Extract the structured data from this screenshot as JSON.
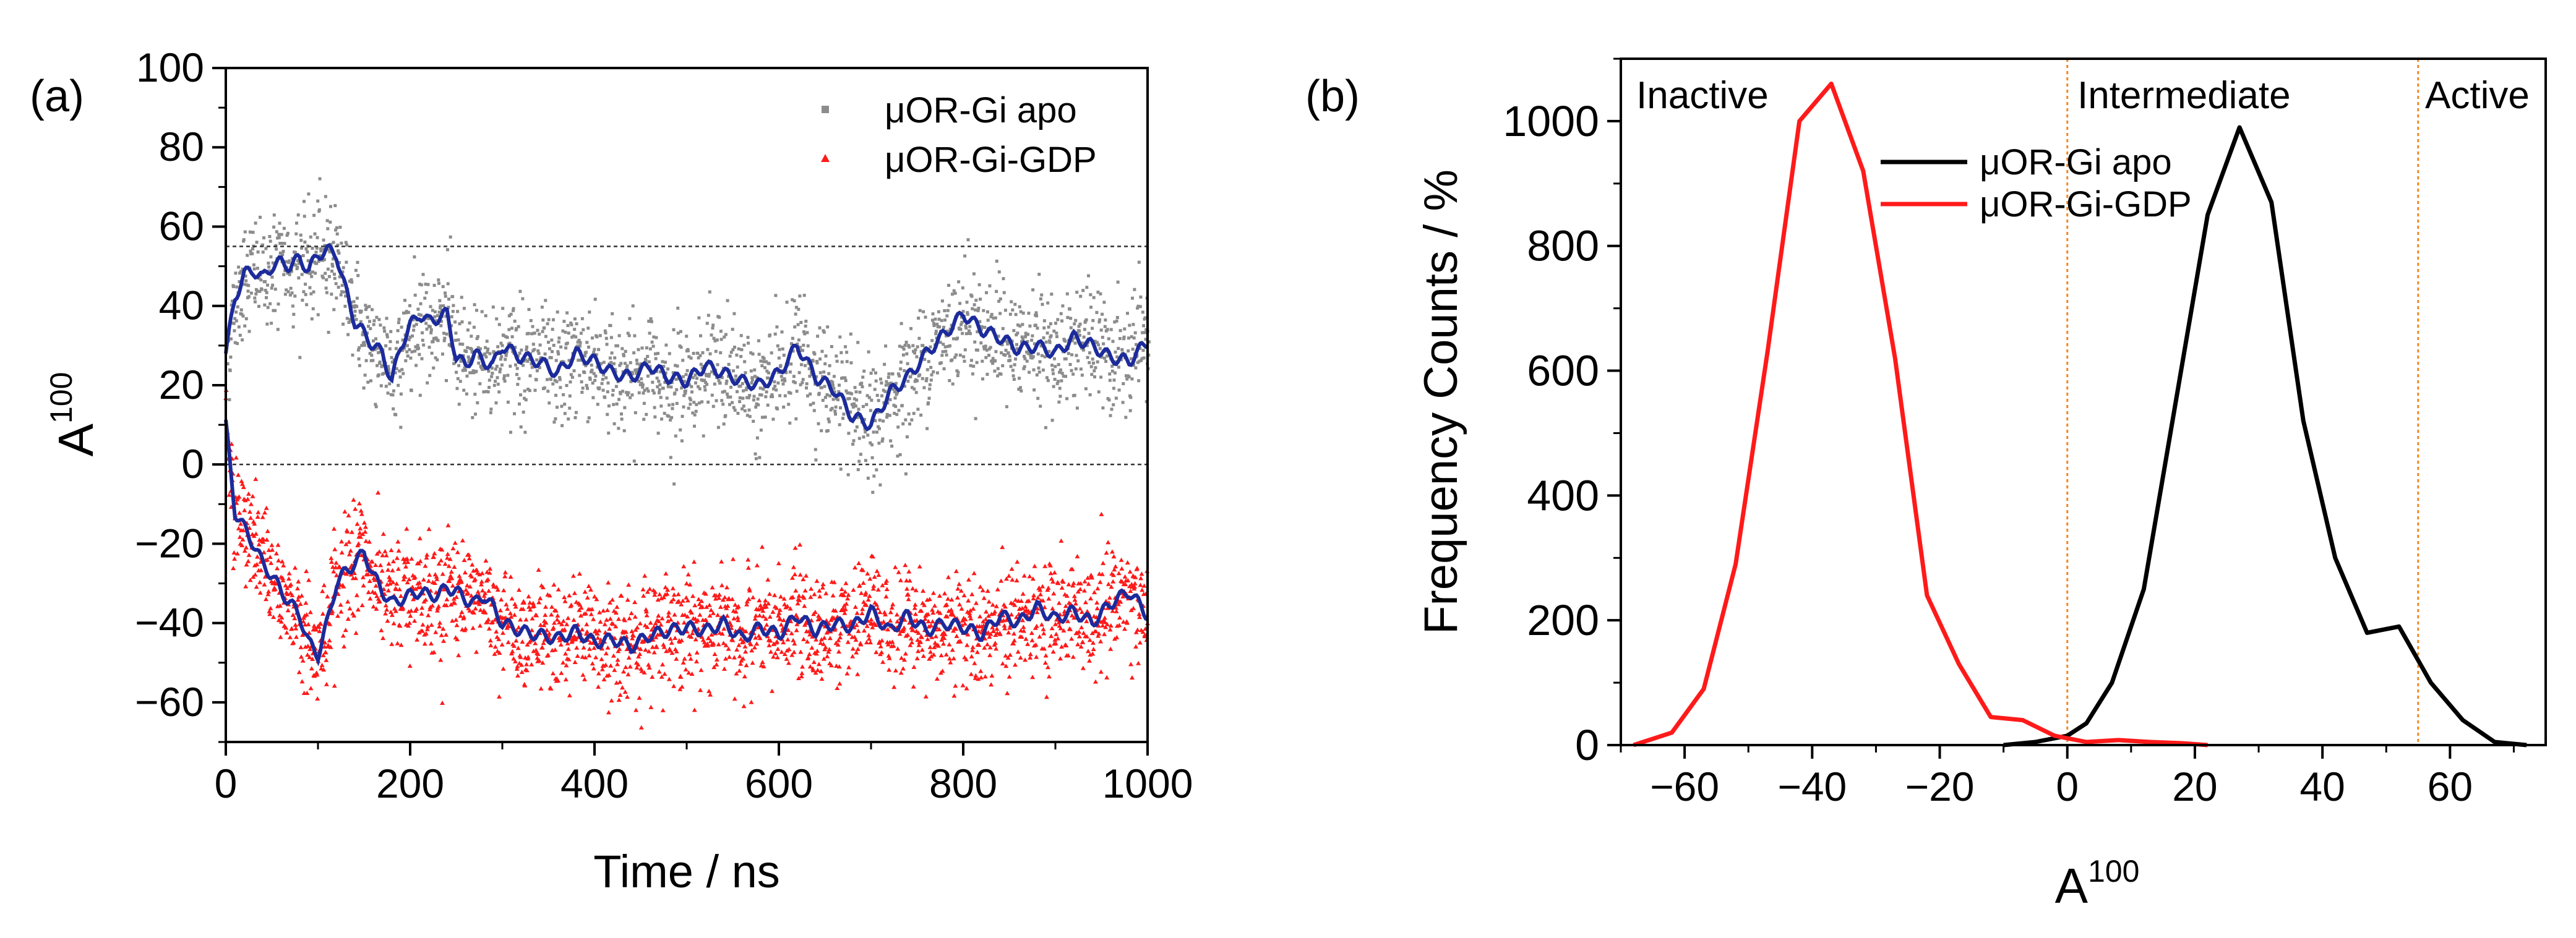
{
  "figure": {
    "description_panels": [
      "(a)",
      "(b)"
    ]
  },
  "chart_data": [
    {
      "panel_label": "(a)",
      "type": "scatter",
      "title": "",
      "xlabel": "Time / ns",
      "ylabel_base": "A",
      "ylabel_sup": "100",
      "xlim": [
        0,
        1000
      ],
      "ylim": [
        -70,
        100
      ],
      "xticks": [
        0,
        200,
        400,
        600,
        800,
        1000
      ],
      "yticks": [
        -60,
        -40,
        -20,
        0,
        20,
        40,
        60,
        80,
        100
      ],
      "reference_lines": [
        55,
        0
      ],
      "legend_position": "top-right",
      "series": [
        {
          "name": "μOR-Gi apo",
          "marker": "square",
          "color": "#8c8c8c",
          "smooth_color": "#1c2b9c",
          "x": [
            0,
            10,
            20,
            30,
            40,
            50,
            60,
            70,
            80,
            90,
            100,
            110,
            120,
            130,
            140,
            150,
            160,
            170,
            180,
            190,
            200,
            210,
            220,
            230,
            240,
            250,
            260,
            270,
            280,
            290,
            300,
            320,
            340,
            360,
            380,
            400,
            420,
            440,
            460,
            480,
            500,
            520,
            540,
            560,
            580,
            600,
            620,
            640,
            660,
            680,
            700,
            720,
            740,
            760,
            780,
            800,
            820,
            840,
            860,
            880,
            900,
            920,
            940,
            960,
            980,
            1000
          ],
          "smooth": [
            28,
            42,
            48,
            49,
            47,
            50,
            51,
            50,
            52,
            49,
            53,
            54,
            53,
            44,
            36,
            33,
            30,
            28,
            21,
            30,
            35,
            38,
            36,
            37,
            38,
            27,
            25,
            28,
            26,
            25,
            30,
            27,
            26,
            23,
            28,
            26,
            23,
            22,
            25,
            22,
            21,
            25,
            23,
            21,
            20,
            23,
            30,
            22,
            19,
            12,
            10,
            18,
            22,
            28,
            33,
            38,
            34,
            32,
            29,
            30,
            28,
            32,
            30,
            27,
            26,
            31
          ]
        },
        {
          "name": "μOR-Gi-GDP",
          "marker": "triangle",
          "color": "#ff1a1a",
          "smooth_color": "#1c2b9c",
          "x": [
            0,
            10,
            20,
            30,
            40,
            50,
            60,
            70,
            80,
            90,
            100,
            110,
            120,
            130,
            140,
            150,
            160,
            170,
            180,
            190,
            200,
            210,
            220,
            230,
            240,
            250,
            260,
            270,
            280,
            290,
            300,
            320,
            340,
            360,
            380,
            400,
            420,
            440,
            460,
            480,
            500,
            520,
            540,
            560,
            580,
            600,
            620,
            640,
            660,
            680,
            700,
            720,
            740,
            760,
            780,
            800,
            820,
            840,
            860,
            880,
            900,
            920,
            940,
            960,
            980,
            1000
          ],
          "smooth": [
            10,
            -12,
            -16,
            -20,
            -25,
            -28,
            -32,
            -35,
            -38,
            -45,
            -48,
            -40,
            -30,
            -27,
            -25,
            -22,
            -28,
            -32,
            -35,
            -34,
            -33,
            -32,
            -33,
            -33,
            -31,
            -32,
            -34,
            -35,
            -33,
            -36,
            -40,
            -42,
            -43,
            -44,
            -42,
            -45,
            -44,
            -46,
            -43,
            -42,
            -41,
            -42,
            -40,
            -44,
            -41,
            -43,
            -38,
            -42,
            -40,
            -41,
            -37,
            -42,
            -38,
            -42,
            -40,
            -41,
            -43,
            -38,
            -40,
            -36,
            -39,
            -37,
            -40,
            -35,
            -32,
            -38
          ]
        }
      ]
    },
    {
      "panel_label": "(b)",
      "type": "line",
      "title": "",
      "xlabel_base": "A",
      "xlabel_sup": "100",
      "ylabel": "Frequency Counts / %",
      "xlim": [
        -70,
        75
      ],
      "ylim": [
        0,
        1100
      ],
      "xticks": [
        -60,
        -40,
        -20,
        0,
        20,
        40,
        60
      ],
      "yticks": [
        0,
        200,
        400,
        600,
        800,
        1000
      ],
      "region_lines": [
        0,
        55
      ],
      "region_labels": [
        "Inactive",
        "Intermediate",
        "Active"
      ],
      "legend_position": "top-center",
      "series": [
        {
          "name": "μOR-Gi apo",
          "color": "#000000",
          "x": [
            -10,
            -5,
            0,
            3,
            7,
            12,
            17,
            22,
            27,
            32,
            37,
            42,
            47,
            52,
            57,
            62,
            67,
            72
          ],
          "values": [
            0,
            5,
            15,
            35,
            100,
            250,
            550,
            850,
            990,
            870,
            520,
            300,
            180,
            190,
            100,
            40,
            5,
            0
          ]
        },
        {
          "name": "μOR-Gi-GDP",
          "color": "#ff1a1a",
          "x": [
            -68,
            -62,
            -57,
            -52,
            -47,
            -42,
            -37,
            -32,
            -27,
            -22,
            -17,
            -12,
            -7,
            -2,
            3,
            8,
            13,
            18,
            22
          ],
          "values": [
            0,
            20,
            90,
            290,
            630,
            1000,
            1060,
            920,
            620,
            240,
            130,
            45,
            40,
            15,
            5,
            8,
            5,
            3,
            0
          ]
        }
      ]
    }
  ]
}
